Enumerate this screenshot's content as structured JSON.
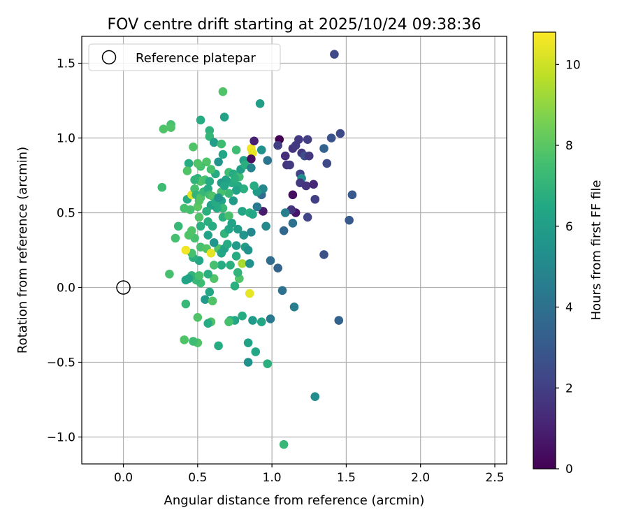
{
  "chart_data": {
    "type": "scatter",
    "title": "FOV centre drift starting at 2025/10/24 09:38:36",
    "xlabel": "Angular distance from reference (arcmin)",
    "ylabel": "Rotation from reference (arcmin)",
    "xlim": [
      -0.28,
      2.58
    ],
    "ylim": [
      -1.18,
      1.68
    ],
    "xticks": [
      0.0,
      0.5,
      1.0,
      1.5,
      2.0,
      2.5
    ],
    "xtick_labels": [
      "0.0",
      "0.5",
      "1.0",
      "1.5",
      "2.0",
      "2.5"
    ],
    "yticks": [
      -1.0,
      -0.5,
      0.0,
      0.5,
      1.0,
      1.5
    ],
    "ytick_labels": [
      "−1.0",
      "−0.5",
      "0.0",
      "0.5",
      "1.0",
      "1.5"
    ],
    "grid": true,
    "legend": {
      "label": "Reference platepar",
      "position": "top-left"
    },
    "reference_point": {
      "x": 0.0,
      "y": 0.0
    },
    "colorbar": {
      "label": "Hours from first FF file",
      "min": 0,
      "max": 10.8,
      "ticks": [
        0,
        2,
        4,
        6,
        8,
        10
      ],
      "tick_labels": [
        "0",
        "2",
        "4",
        "6",
        "8",
        "10"
      ],
      "colormap": "viridis"
    },
    "series": [
      {
        "name": "FOV centre",
        "points": [
          [
            1.42,
            1.56,
            2.4
          ],
          [
            0.67,
            1.31,
            7.8
          ],
          [
            0.92,
            1.23,
            6.0
          ],
          [
            0.52,
            1.12,
            6.6
          ],
          [
            0.68,
            1.14,
            6.2
          ],
          [
            0.27,
            1.06,
            7.8
          ],
          [
            0.32,
            1.09,
            7.6
          ],
          [
            0.32,
            1.07,
            7.8
          ],
          [
            0.58,
            1.05,
            6.9
          ],
          [
            0.58,
            1.01,
            7.1
          ],
          [
            0.61,
            0.97,
            6.0
          ],
          [
            0.66,
            0.96,
            7.4
          ],
          [
            0.47,
            0.94,
            7.8
          ],
          [
            0.67,
            0.89,
            6.4
          ],
          [
            0.64,
            0.84,
            5.6
          ],
          [
            0.76,
            0.92,
            7.4
          ],
          [
            0.81,
            0.85,
            6.2
          ],
          [
            0.86,
            0.93,
            10.6
          ],
          [
            0.87,
            0.9,
            10.4
          ],
          [
            0.88,
            0.98,
            1.0
          ],
          [
            0.86,
            0.86,
            0.4
          ],
          [
            0.93,
            0.92,
            5.4
          ],
          [
            0.97,
            0.85,
            4.2
          ],
          [
            1.05,
            0.99,
            0.0
          ],
          [
            1.04,
            0.95,
            2.0
          ],
          [
            1.09,
            0.88,
            1.4
          ],
          [
            1.1,
            0.82,
            1.6
          ],
          [
            1.12,
            0.82,
            1.8
          ],
          [
            1.14,
            0.93,
            1.6
          ],
          [
            1.16,
            0.95,
            1.8
          ],
          [
            1.18,
            0.99,
            1.8
          ],
          [
            1.2,
            0.9,
            1.8
          ],
          [
            1.22,
            0.88,
            2.6
          ],
          [
            1.24,
            0.99,
            2.0
          ],
          [
            1.25,
            0.88,
            1.8
          ],
          [
            1.35,
            0.93,
            3.4
          ],
          [
            1.4,
            1.0,
            2.8
          ],
          [
            1.46,
            1.03,
            2.4
          ],
          [
            1.37,
            0.83,
            2.4
          ],
          [
            1.19,
            0.76,
            2.2
          ],
          [
            1.2,
            0.73,
            5.2
          ],
          [
            1.19,
            0.7,
            1.8
          ],
          [
            1.23,
            0.68,
            1.6
          ],
          [
            1.28,
            0.69,
            1.2
          ],
          [
            1.29,
            0.59,
            2.0
          ],
          [
            1.14,
            0.62,
            0.4
          ],
          [
            1.16,
            0.5,
            0.6
          ],
          [
            1.13,
            0.52,
            1.6
          ],
          [
            1.09,
            0.5,
            4.6
          ],
          [
            1.08,
            0.38,
            3.6
          ],
          [
            1.14,
            0.43,
            4.0
          ],
          [
            1.24,
            0.47,
            2.2
          ],
          [
            1.54,
            0.62,
            3.0
          ],
          [
            1.52,
            0.45,
            3.0
          ],
          [
            1.35,
            0.22,
            2.6
          ],
          [
            0.94,
            0.51,
            0.8
          ],
          [
            0.93,
            0.62,
            3.8
          ],
          [
            0.94,
            0.66,
            5.0
          ],
          [
            0.9,
            0.54,
            4.4
          ],
          [
            0.96,
            0.41,
            5.0
          ],
          [
            0.99,
            0.18,
            3.8
          ],
          [
            1.04,
            0.13,
            3.4
          ],
          [
            1.07,
            -0.02,
            4.0
          ],
          [
            1.15,
            -0.13,
            4.6
          ],
          [
            1.45,
            -0.22,
            3.4
          ],
          [
            0.99,
            -0.21,
            4.4
          ],
          [
            0.93,
            -0.23,
            6.4
          ],
          [
            0.87,
            -0.22,
            5.8
          ],
          [
            0.8,
            -0.19,
            6.6
          ],
          [
            0.75,
            -0.22,
            6.4
          ],
          [
            0.72,
            -0.22,
            6.6
          ],
          [
            0.71,
            -0.23,
            7.6
          ],
          [
            0.84,
            -0.37,
            6.2
          ],
          [
            0.89,
            -0.43,
            6.4
          ],
          [
            0.84,
            -0.5,
            5.4
          ],
          [
            0.97,
            -0.51,
            6.8
          ],
          [
            1.29,
            -0.73,
            5.2
          ],
          [
            1.08,
            -1.05,
            7.2
          ],
          [
            0.64,
            -0.39,
            6.6
          ],
          [
            0.5,
            -0.37,
            7.8
          ],
          [
            0.47,
            -0.36,
            7.4
          ],
          [
            0.41,
            -0.35,
            7.8
          ],
          [
            0.59,
            -0.23,
            7.8
          ],
          [
            0.57,
            -0.24,
            6.6
          ],
          [
            0.5,
            -0.2,
            7.8
          ],
          [
            0.42,
            -0.11,
            7.2
          ],
          [
            0.55,
            -0.08,
            5.8
          ],
          [
            0.6,
            -0.09,
            7.8
          ],
          [
            0.58,
            -0.03,
            6.4
          ],
          [
            0.52,
            0.03,
            7.4
          ],
          [
            0.49,
            0.05,
            7.2
          ],
          [
            0.46,
            0.08,
            7.0
          ],
          [
            0.42,
            0.05,
            6.4
          ],
          [
            0.44,
            0.06,
            6.2
          ],
          [
            0.61,
            0.06,
            7.8
          ],
          [
            0.57,
            0.09,
            6.8
          ],
          [
            0.51,
            0.08,
            7.6
          ],
          [
            0.31,
            0.09,
            7.6
          ],
          [
            0.78,
            0.06,
            7.8
          ],
          [
            0.75,
            0.01,
            6.8
          ],
          [
            0.85,
            -0.04,
            10.4
          ],
          [
            0.77,
            0.1,
            7.0
          ],
          [
            0.8,
            0.16,
            9.4
          ],
          [
            0.85,
            0.16,
            5.4
          ],
          [
            0.72,
            0.15,
            6.8
          ],
          [
            0.66,
            0.15,
            6.6
          ],
          [
            0.61,
            0.15,
            7.6
          ],
          [
            0.51,
            0.18,
            6.4
          ],
          [
            0.47,
            0.2,
            6.8
          ],
          [
            0.46,
            0.23,
            7.6
          ],
          [
            0.42,
            0.25,
            10.6
          ],
          [
            0.52,
            0.27,
            7.6
          ],
          [
            0.56,
            0.26,
            7.8
          ],
          [
            0.59,
            0.23,
            10.4
          ],
          [
            0.64,
            0.26,
            7.8
          ],
          [
            0.66,
            0.23,
            6.4
          ],
          [
            0.68,
            0.26,
            6.2
          ],
          [
            0.76,
            0.28,
            5.8
          ],
          [
            0.82,
            0.27,
            6.0
          ],
          [
            0.84,
            0.25,
            5.4
          ],
          [
            0.76,
            0.21,
            6.6
          ],
          [
            0.7,
            0.29,
            6.6
          ],
          [
            0.68,
            0.36,
            7.0
          ],
          [
            0.61,
            0.3,
            5.6
          ],
          [
            0.57,
            0.35,
            6.2
          ],
          [
            0.48,
            0.33,
            7.6
          ],
          [
            0.46,
            0.38,
            7.8
          ],
          [
            0.44,
            0.35,
            7.8
          ],
          [
            0.35,
            0.33,
            7.6
          ],
          [
            0.37,
            0.41,
            7.2
          ],
          [
            0.52,
            0.41,
            6.8
          ],
          [
            0.51,
            0.47,
            7.8
          ],
          [
            0.57,
            0.44,
            6.8
          ],
          [
            0.6,
            0.41,
            6.6
          ],
          [
            0.67,
            0.47,
            6.8
          ],
          [
            0.71,
            0.48,
            7.6
          ],
          [
            0.71,
            0.39,
            6.4
          ],
          [
            0.73,
            0.43,
            6.2
          ],
          [
            0.77,
            0.39,
            6.0
          ],
          [
            0.81,
            0.35,
            5.6
          ],
          [
            0.86,
            0.37,
            5.0
          ],
          [
            0.8,
            0.51,
            6.4
          ],
          [
            0.85,
            0.5,
            6.8
          ],
          [
            0.87,
            0.49,
            6.4
          ],
          [
            0.94,
            0.66,
            5.0
          ],
          [
            0.9,
            0.64,
            5.8
          ],
          [
            0.88,
            0.68,
            6.6
          ],
          [
            0.81,
            0.66,
            6.8
          ],
          [
            0.77,
            0.68,
            6.6
          ],
          [
            0.76,
            0.65,
            6.2
          ],
          [
            0.73,
            0.7,
            6.6
          ],
          [
            0.69,
            0.72,
            6.2
          ],
          [
            0.71,
            0.63,
            7.2
          ],
          [
            0.74,
            0.58,
            5.8
          ],
          [
            0.66,
            0.64,
            7.6
          ],
          [
            0.66,
            0.58,
            6.2
          ],
          [
            0.67,
            0.53,
            7.2
          ],
          [
            0.63,
            0.53,
            6.6
          ],
          [
            0.59,
            0.55,
            6.2
          ],
          [
            0.56,
            0.51,
            6.8
          ],
          [
            0.5,
            0.54,
            8.0
          ],
          [
            0.51,
            0.58,
            7.8
          ],
          [
            0.45,
            0.52,
            7.6
          ],
          [
            0.41,
            0.53,
            7.6
          ],
          [
            0.43,
            0.59,
            6.6
          ],
          [
            0.46,
            0.62,
            10.4
          ],
          [
            0.48,
            0.66,
            7.6
          ],
          [
            0.49,
            0.62,
            7.0
          ],
          [
            0.52,
            0.6,
            7.8
          ],
          [
            0.54,
            0.64,
            7.2
          ],
          [
            0.57,
            0.66,
            6.6
          ],
          [
            0.58,
            0.62,
            7.4
          ],
          [
            0.6,
            0.61,
            7.8
          ],
          [
            0.62,
            0.57,
            6.6
          ],
          [
            0.64,
            0.6,
            5.6
          ],
          [
            0.66,
            0.7,
            6.0
          ],
          [
            0.68,
            0.68,
            6.4
          ],
          [
            0.71,
            0.77,
            7.4
          ],
          [
            0.74,
            0.76,
            6.6
          ],
          [
            0.78,
            0.74,
            7.4
          ],
          [
            0.79,
            0.79,
            6.0
          ],
          [
            0.82,
            0.82,
            6.8
          ],
          [
            0.86,
            0.8,
            4.8
          ],
          [
            0.75,
            0.73,
            6.8
          ],
          [
            0.62,
            0.76,
            6.6
          ],
          [
            0.59,
            0.79,
            7.6
          ],
          [
            0.56,
            0.84,
            7.8
          ],
          [
            0.52,
            0.81,
            7.6
          ],
          [
            0.5,
            0.83,
            7.8
          ],
          [
            0.44,
            0.83,
            6.6
          ],
          [
            0.43,
            0.78,
            7.8
          ],
          [
            0.5,
            0.73,
            6.8
          ],
          [
            0.52,
            0.71,
            7.8
          ],
          [
            0.55,
            0.72,
            7.6
          ],
          [
            0.58,
            0.71,
            6.6
          ],
          [
            0.48,
            0.72,
            7.0
          ],
          [
            0.26,
            0.67,
            7.4
          ]
        ]
      }
    ]
  }
}
